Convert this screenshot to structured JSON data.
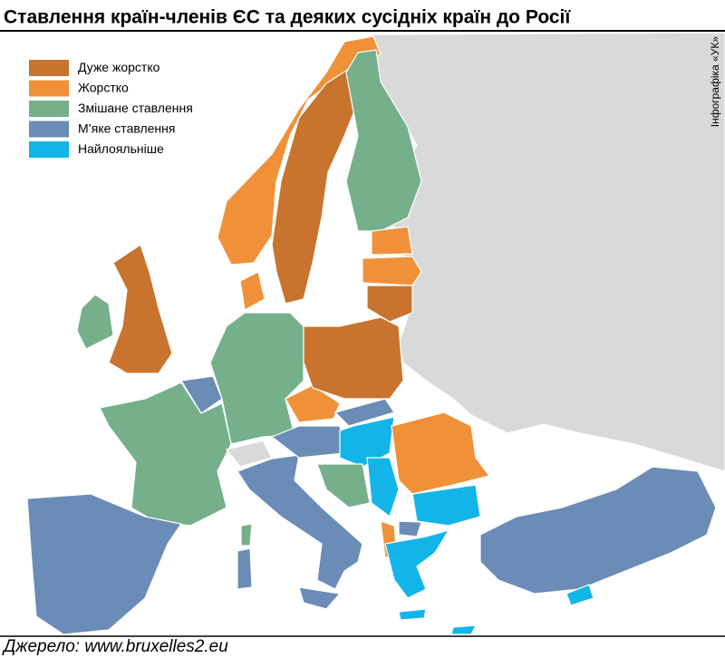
{
  "header": {
    "title": "Ставлення країн-членів ЄС та деяких сусідніх країн до Росії"
  },
  "credit": "Інфографіка «УК»",
  "legend": [
    {
      "label": "Дуже жорстко",
      "color": "#c8742f"
    },
    {
      "label": "Жорстко",
      "color": "#f0913a"
    },
    {
      "label": "Змішане ставлення",
      "color": "#75b08b"
    },
    {
      "label": "М’яке ставлення",
      "color": "#6a8cb6"
    },
    {
      "label": "Найлояльніше",
      "color": "#13b5e8"
    }
  ],
  "source": "Джерело: www.bruxelles2.eu"
}
